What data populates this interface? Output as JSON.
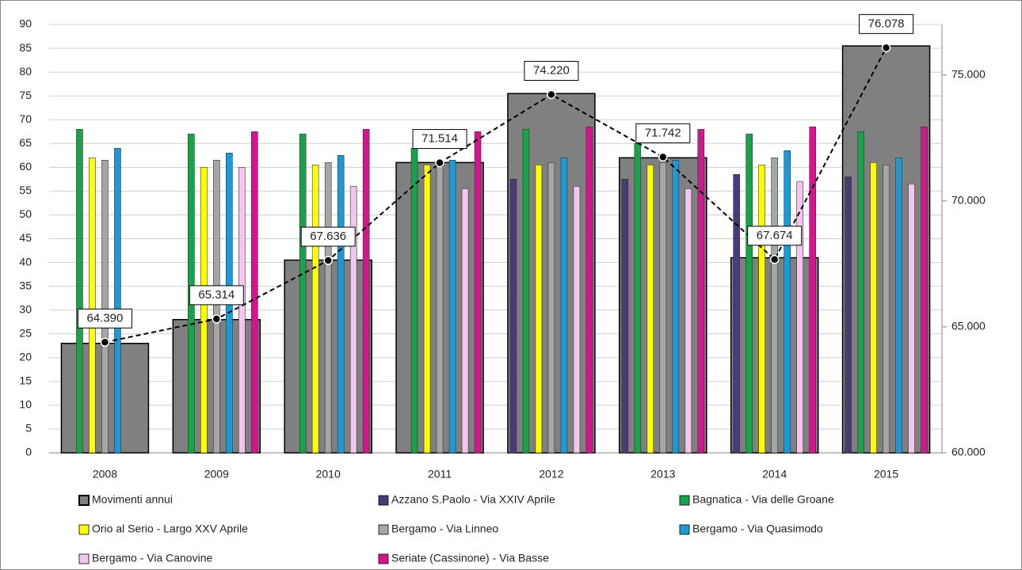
{
  "chart_data": {
    "type": "bar",
    "categories": [
      "2008",
      "2009",
      "2010",
      "2011",
      "2012",
      "2013",
      "2014",
      "2015"
    ],
    "ylim": [
      0,
      90
    ],
    "yticks": [
      0,
      5,
      10,
      15,
      20,
      25,
      30,
      35,
      40,
      45,
      50,
      55,
      60,
      65,
      70,
      75,
      80,
      85,
      90
    ],
    "y2lim": [
      60000,
      77000
    ],
    "y2ticks": [
      {
        "value": 60000,
        "label": "60.000"
      },
      {
        "value": 65000,
        "label": "65.000"
      },
      {
        "value": 70000,
        "label": "70.000"
      },
      {
        "value": 75000,
        "label": "75.000"
      }
    ],
    "grid": true,
    "series": [
      {
        "name": "Movimenti annui",
        "color": "#808080",
        "values": [
          23,
          28,
          40.5,
          61,
          75.5,
          62,
          41,
          85.5
        ]
      },
      {
        "name": "Azzano S.Paolo - Via XXIV Aprile",
        "color": "#4b3a78",
        "values": [
          null,
          null,
          null,
          null,
          57.5,
          57.5,
          58.5,
          58
        ]
      },
      {
        "name": "Bagnatica - Via delle Groane",
        "color": "#18a24a",
        "values": [
          68,
          67,
          67,
          64,
          68,
          65,
          67,
          67.5
        ]
      },
      {
        "name": "Orio al Serio - Largo XXV Aprile",
        "color": "#ffff00",
        "values": [
          62,
          60,
          60.5,
          60.5,
          60.5,
          60.5,
          60.5,
          61
        ]
      },
      {
        "name": "Bergamo - Via Linneo",
        "color": "#a6a6a6",
        "values": [
          61.5,
          61.5,
          61,
          61,
          61,
          61,
          62,
          60.5
        ]
      },
      {
        "name": "Bergamo - Via Quasimodo",
        "color": "#1b9ad6",
        "values": [
          64,
          63,
          62.5,
          61.5,
          62,
          61.5,
          63.5,
          62
        ]
      },
      {
        "name": "Bergamo - Via Canovine",
        "color": "#f4c6ec",
        "values": [
          null,
          60,
          56,
          55.5,
          56,
          55.5,
          57,
          56.5
        ]
      },
      {
        "name": "Seriate (Cassinone) - Via Basse",
        "color": "#d4168c",
        "values": [
          null,
          67.5,
          68,
          67.5,
          68.5,
          68,
          68.5,
          68.5
        ]
      },
      {
        "type": "line",
        "axis": "y2",
        "color": "#000000",
        "values": [
          64390,
          65314,
          67636,
          71514,
          74220,
          71742,
          67674,
          76078
        ],
        "value_labels": [
          "64.390",
          "65.314",
          "67.636",
          "71.514",
          "74.220",
          "71.742",
          "67.674",
          "76.078"
        ]
      }
    ]
  }
}
